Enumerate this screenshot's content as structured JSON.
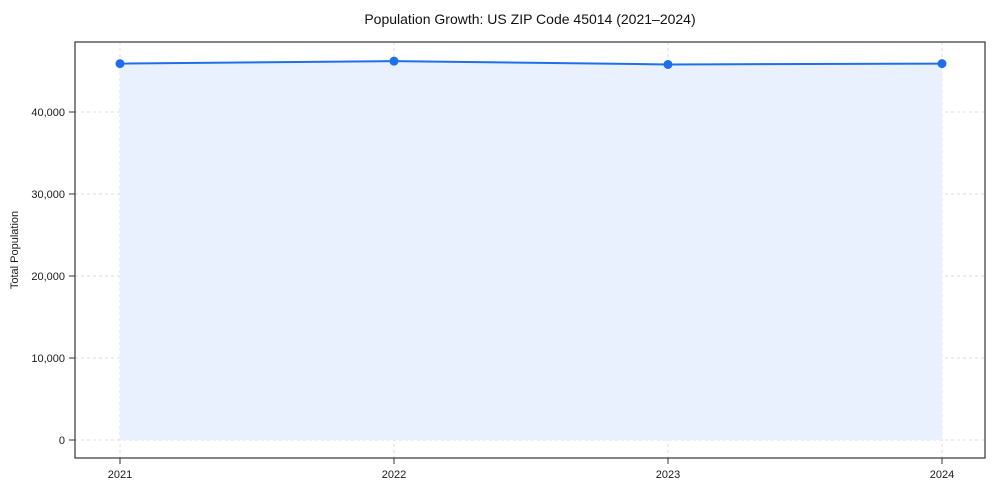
{
  "title": "Population Growth: US ZIP Code 45014 (2021–2024)",
  "chart_data": {
    "type": "area",
    "x": [
      2021,
      2022,
      2023,
      2024
    ],
    "series": [
      {
        "name": "Total Population",
        "values": [
          45900,
          46200,
          45800,
          45900
        ]
      }
    ],
    "title": "Population Growth: US ZIP Code 45014 (2021–2024)",
    "xlabel": "",
    "ylabel": "Total Population",
    "ylim": [
      0,
      48500
    ],
    "yticks": [
      0,
      10000,
      20000,
      30000,
      40000
    ],
    "ytick_labels": [
      "0",
      "10,000",
      "20,000",
      "30,000",
      "40,000"
    ],
    "xtick_labels": [
      "2021",
      "2022",
      "2023",
      "2024"
    ],
    "grid": true,
    "grid_style": "dashed",
    "legend": "none",
    "colors": {
      "line": "#1f6fe8",
      "marker": "#1f6fe8",
      "fill": "#e8f1fd",
      "gridline": "#dcdcdc",
      "axis_border": "#333333",
      "tick_text": "#1a1a1a"
    }
  }
}
